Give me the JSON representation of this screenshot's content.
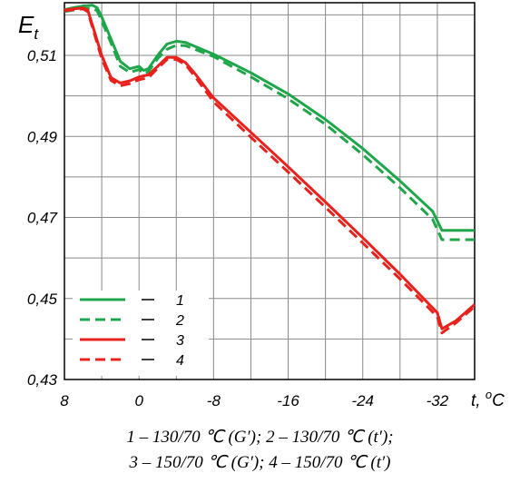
{
  "chart_data": {
    "type": "line",
    "ylabel_main": "E",
    "ylabel_sub": "t",
    "xlabel": "t, ",
    "xunit_sup": "o",
    "xunit": "C",
    "xlim": [
      8,
      -36
    ],
    "ylim": [
      0.43,
      0.523
    ],
    "x_ticks": [
      8,
      0,
      -8,
      -16,
      -24,
      -32
    ],
    "x_tick_labels": [
      "8",
      "0",
      "-8",
      "-16",
      "-24",
      "-32"
    ],
    "y_ticks": [
      0.43,
      0.45,
      0.47,
      0.49,
      0.51
    ],
    "y_tick_labels": [
      "0,43",
      "0,45",
      "0,47",
      "0,49",
      "0,51"
    ],
    "grid": true,
    "legend_position": "bottom-left",
    "series": [
      {
        "name": "1",
        "color": "#1fa64b",
        "dash": "solid",
        "x": [
          8,
          7,
          6,
          5,
          4.5,
          4,
          3,
          2,
          1,
          0,
          -0.5,
          -1,
          -2,
          -3,
          -4,
          -5,
          -8,
          -12,
          -16,
          -20,
          -24,
          -28,
          -31.5,
          -32.5,
          -36
        ],
        "y": [
          0.5213,
          0.5218,
          0.5222,
          0.5224,
          0.5218,
          0.5195,
          0.514,
          0.5085,
          0.5067,
          0.5073,
          0.5063,
          0.5067,
          0.51,
          0.5128,
          0.5135,
          0.5132,
          0.5103,
          0.5057,
          0.5005,
          0.4942,
          0.487,
          0.479,
          0.4715,
          0.4668,
          0.4668
        ]
      },
      {
        "name": "2",
        "color": "#1fa64b",
        "dash": "dashed",
        "x": [
          8,
          7,
          6,
          5,
          4.5,
          4,
          3,
          2,
          1,
          0,
          -0.5,
          -1,
          -2,
          -3,
          -4,
          -5,
          -8,
          -12,
          -16,
          -20,
          -24,
          -28,
          -31.5,
          -32.5,
          -36
        ],
        "y": [
          0.5208,
          0.5212,
          0.5215,
          0.5217,
          0.521,
          0.5185,
          0.513,
          0.5073,
          0.5058,
          0.5065,
          0.5055,
          0.506,
          0.5092,
          0.5115,
          0.5125,
          0.5124,
          0.5097,
          0.5047,
          0.4993,
          0.493,
          0.4855,
          0.4773,
          0.4695,
          0.4645,
          0.4645
        ]
      },
      {
        "name": "3",
        "color": "#e8211c",
        "dash": "solid",
        "x": [
          8,
          7,
          6,
          5.5,
          5,
          4,
          3,
          2,
          1,
          0,
          -1,
          -2,
          -3,
          -4,
          -5,
          -6,
          -8,
          -12,
          -16,
          -20,
          -24,
          -28,
          -32,
          -32.5,
          -34,
          -36
        ],
        "y": [
          0.5212,
          0.5215,
          0.5217,
          0.5212,
          0.5175,
          0.51,
          0.5045,
          0.5032,
          0.5037,
          0.5047,
          0.5052,
          0.5073,
          0.5095,
          0.5095,
          0.5082,
          0.5055,
          0.4995,
          0.491,
          0.4825,
          0.4738,
          0.465,
          0.456,
          0.4465,
          0.4425,
          0.4445,
          0.4485
        ]
      },
      {
        "name": "4",
        "color": "#e8211c",
        "dash": "dashed",
        "x": [
          8,
          7,
          6,
          5.5,
          5,
          4,
          3,
          2,
          1,
          0,
          -1,
          -2,
          -3,
          -4,
          -5,
          -6,
          -8,
          -12,
          -16,
          -20,
          -24,
          -28,
          -32,
          -32.5,
          -34,
          -36
        ],
        "y": [
          0.521,
          0.5213,
          0.5215,
          0.5208,
          0.517,
          0.5092,
          0.5038,
          0.5025,
          0.503,
          0.504,
          0.5045,
          0.5068,
          0.509,
          0.509,
          0.5077,
          0.5048,
          0.4985,
          0.4898,
          0.4812,
          0.4725,
          0.4637,
          0.4548,
          0.4455,
          0.4415,
          0.444,
          0.448
        ]
      }
    ],
    "legend": [
      {
        "label": "1",
        "series": 0
      },
      {
        "label": "2",
        "series": 1
      },
      {
        "label": "3",
        "series": 2
      },
      {
        "label": "4",
        "series": 3
      }
    ]
  },
  "caption": {
    "line1": "1 – 130/70 ℃ (G′); 2 –  130/70 ℃ (t′);",
    "line2": "3 – 150/70 ℃ (G′); 4 – 150/70 ℃ (t′)"
  }
}
